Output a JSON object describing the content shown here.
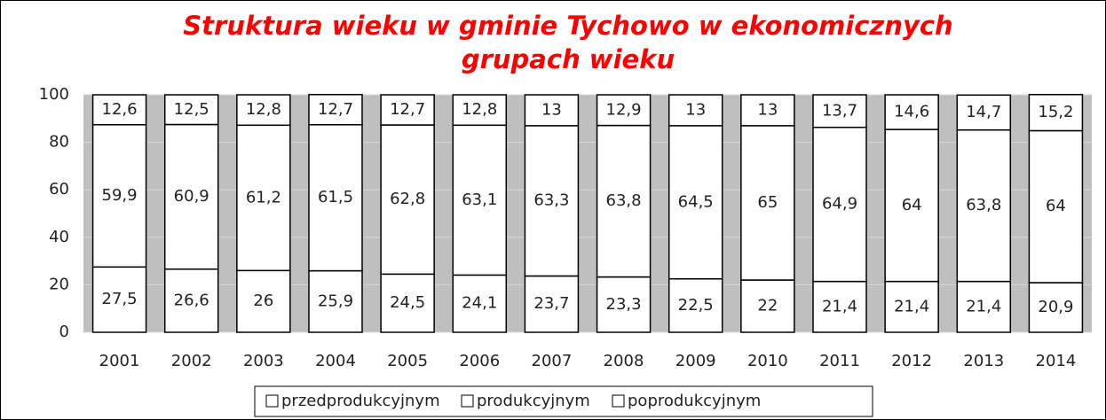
{
  "chart_data": {
    "type": "stacked_bar",
    "title": "Struktura wieku w gminie Tychowo w ekonomicznych grupach wieku",
    "categories": [
      "2001",
      "2002",
      "2003",
      "2004",
      "2005",
      "2006",
      "2007",
      "2008",
      "2009",
      "2010",
      "2011",
      "2012",
      "2013",
      "2014"
    ],
    "series": [
      {
        "name": "przedprodukcyjnym",
        "color": "#ffffff",
        "values": [
          27.5,
          26.6,
          26,
          25.9,
          24.5,
          24.1,
          23.7,
          23.3,
          22.5,
          22,
          21.4,
          21.4,
          21.4,
          20.9
        ],
        "value_labels": [
          "27,5",
          "26,6",
          "26",
          "25,9",
          "24,5",
          "24,1",
          "23,7",
          "23,3",
          "22,5",
          "22",
          "21,4",
          "21,4",
          "21,4",
          "20,9"
        ]
      },
      {
        "name": "produkcyjnym",
        "color": "#ffffff",
        "values": [
          59.9,
          60.9,
          61.2,
          61.5,
          62.8,
          63.1,
          63.3,
          63.8,
          64.5,
          65,
          64.9,
          64,
          63.8,
          64
        ],
        "value_labels": [
          "59,9",
          "60,9",
          "61,2",
          "61,5",
          "62,8",
          "63,1",
          "63,3",
          "63,8",
          "64,5",
          "65",
          "64,9",
          "64",
          "63,8",
          "64"
        ]
      },
      {
        "name": "poprodukcyjnym",
        "color": "#ffffff",
        "values": [
          12.6,
          12.5,
          12.8,
          12.7,
          12.7,
          12.8,
          13,
          12.9,
          13,
          13,
          13.7,
          14.6,
          14.7,
          15.2
        ],
        "value_labels": [
          "12,6",
          "12,5",
          "12,8",
          "12,7",
          "12,7",
          "12,8",
          "13",
          "12,9",
          "13",
          "13",
          "13,7",
          "14,6",
          "14,7",
          "15,2"
        ]
      }
    ],
    "ylim": [
      0,
      100
    ],
    "yticks": [
      0,
      20,
      40,
      60,
      80,
      100
    ],
    "grid": true,
    "legend": "bottom"
  }
}
